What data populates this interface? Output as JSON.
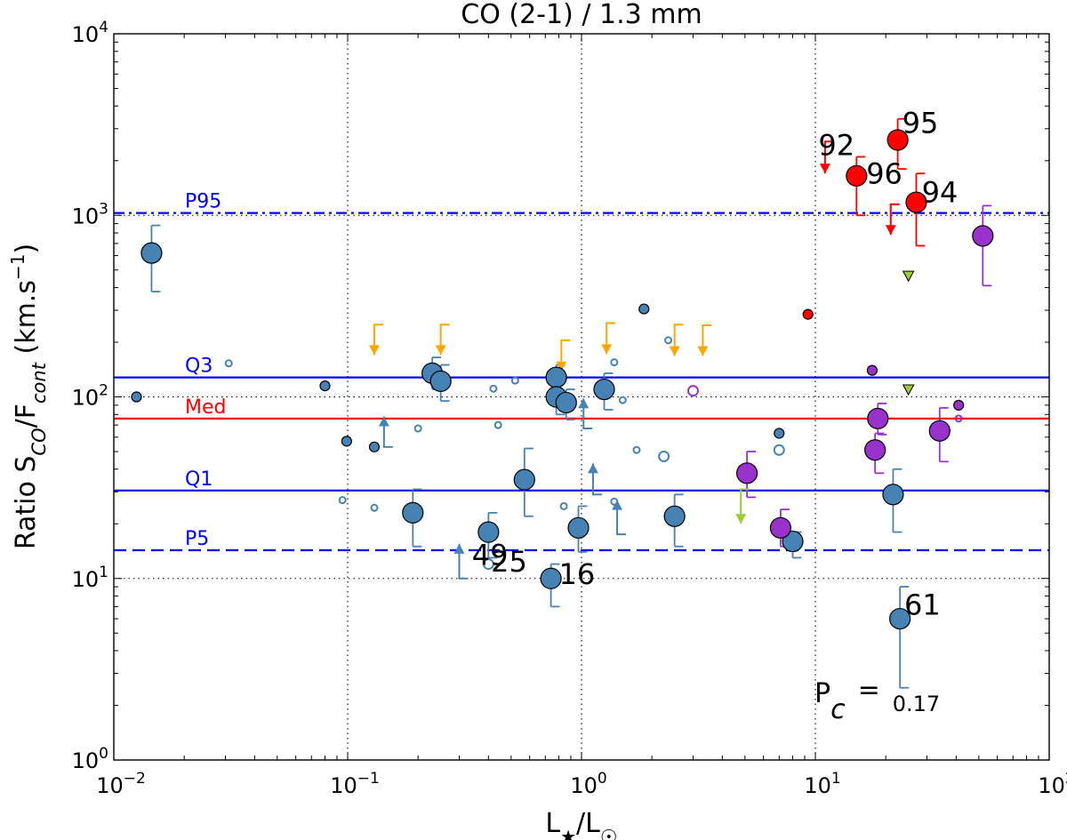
{
  "chart_data": {
    "type": "scatter",
    "title": "CO (2-1) / 1.3 mm",
    "xlabel": {
      "base": "L",
      "sub1": "★",
      "mid": "/L",
      "sub2": "☉"
    },
    "ylabel": {
      "base": "Ratio S",
      "sub1": "CO",
      "mid": "/F",
      "sub2": "cont",
      "unit": " (km.s",
      "unit_sup": "−1",
      "unit_end": ")"
    },
    "xscale": "log",
    "yscale": "log",
    "xlim": [
      0.01,
      100
    ],
    "ylim": [
      1,
      10000
    ],
    "x_ticks": [
      {
        "value": 0.01,
        "base": "10",
        "exp": "−2"
      },
      {
        "value": 0.1,
        "base": "10",
        "exp": "−1"
      },
      {
        "value": 1,
        "base": "10",
        "exp": "0"
      },
      {
        "value": 10,
        "base": "10",
        "exp": "1"
      },
      {
        "value": 100,
        "base": "10",
        "exp": "2"
      }
    ],
    "y_ticks": [
      {
        "value": 1,
        "base": "10",
        "exp": "0"
      },
      {
        "value": 10,
        "base": "10",
        "exp": "1"
      },
      {
        "value": 100,
        "base": "10",
        "exp": "2"
      },
      {
        "value": 1000,
        "base": "10",
        "exp": "3"
      },
      {
        "value": 10000,
        "base": "10",
        "exp": "4"
      }
    ],
    "grid": "dotted",
    "colors": {
      "blue": "#4682b4",
      "red": "#ff0000",
      "purple": "#9932cc",
      "orange": "#ffa500",
      "green": "#9acd32",
      "ref_blue": "#0000ff",
      "ref_red": "#ff0000"
    },
    "reference_lines": [
      {
        "name": "P95",
        "label": "P95",
        "value": 1030,
        "style": "dashdot",
        "color": "#0000ff"
      },
      {
        "name": "Q3",
        "label": "Q3",
        "value": 128,
        "style": "solid",
        "color": "#0000ff"
      },
      {
        "name": "Med",
        "label": "Med",
        "value": 76,
        "style": "solid",
        "color": "#ff0000"
      },
      {
        "name": "Q1",
        "label": "Q1",
        "value": 30.5,
        "style": "solid",
        "color": "#0000ff"
      },
      {
        "name": "P5",
        "label": "P5",
        "value": 14.3,
        "style": "dashed",
        "color": "#0000ff"
      }
    ],
    "points": [
      {
        "x": 0.0145,
        "y": 620,
        "size": "large",
        "color": "blue",
        "err_lo": 380,
        "err_hi": 880
      },
      {
        "x": 0.0125,
        "y": 100,
        "size": "small",
        "color": "blue"
      },
      {
        "x": 0.08,
        "y": 115,
        "size": "small",
        "color": "blue"
      },
      {
        "x": 0.099,
        "y": 57,
        "size": "small",
        "color": "blue"
      },
      {
        "x": 0.13,
        "y": 53,
        "size": "small",
        "color": "blue"
      },
      {
        "x": 0.19,
        "y": 23,
        "size": "large",
        "color": "blue",
        "err_lo": 15,
        "err_hi": 31
      },
      {
        "x": 0.23,
        "y": 135,
        "size": "large",
        "color": "blue",
        "err_lo": 110,
        "err_hi": 165
      },
      {
        "x": 0.25,
        "y": 122,
        "size": "large",
        "color": "blue",
        "err_lo": 95,
        "err_hi": 150
      },
      {
        "x": 0.4,
        "y": 18,
        "size": "large",
        "color": "blue",
        "err_lo": 13,
        "err_hi": 23
      },
      {
        "x": 0.57,
        "y": 35,
        "size": "large",
        "color": "blue",
        "err_lo": 22,
        "err_hi": 52
      },
      {
        "x": 0.74,
        "y": 10,
        "size": "large",
        "color": "blue",
        "err_lo": 7,
        "err_hi": 12
      },
      {
        "x": 0.78,
        "y": 128,
        "size": "large",
        "color": "blue",
        "err_lo": 105,
        "err_hi": 150
      },
      {
        "x": 0.78,
        "y": 100,
        "size": "large",
        "color": "blue",
        "err_lo": 80,
        "err_hi": 122
      },
      {
        "x": 0.86,
        "y": 93,
        "size": "large",
        "color": "blue",
        "err_lo": 75,
        "err_hi": 110
      },
      {
        "x": 0.97,
        "y": 19,
        "size": "large",
        "color": "blue",
        "err_lo": 14,
        "err_hi": 25
      },
      {
        "x": 1.25,
        "y": 110,
        "size": "large",
        "color": "blue",
        "err_lo": 85,
        "err_hi": 135
      },
      {
        "x": 1.85,
        "y": 305,
        "size": "small",
        "color": "blue"
      },
      {
        "x": 2.5,
        "y": 22,
        "size": "large",
        "color": "blue",
        "err_lo": 15,
        "err_hi": 29
      },
      {
        "x": 7.0,
        "y": 63,
        "size": "small",
        "color": "blue"
      },
      {
        "x": 8.0,
        "y": 16,
        "size": "large",
        "color": "blue",
        "err_lo": 13,
        "err_hi": 18
      },
      {
        "x": 21.5,
        "y": 29,
        "size": "large",
        "color": "blue",
        "err_lo": 18,
        "err_hi": 40
      },
      {
        "x": 23.0,
        "y": 6,
        "size": "large",
        "color": "blue",
        "err_lo": 2.5,
        "err_hi": 9
      },
      {
        "x": 0.031,
        "y": 153,
        "size": "tiny",
        "color": "blue",
        "open": true
      },
      {
        "x": 0.095,
        "y": 27,
        "size": "tiny",
        "color": "blue",
        "open": true
      },
      {
        "x": 0.13,
        "y": 24.5,
        "size": "tiny",
        "color": "blue",
        "open": true
      },
      {
        "x": 0.2,
        "y": 67,
        "size": "tiny",
        "color": "blue",
        "open": true
      },
      {
        "x": 0.4,
        "y": 12,
        "size": "small",
        "color": "blue",
        "open": true
      },
      {
        "x": 0.42,
        "y": 111,
        "size": "tiny",
        "color": "blue",
        "open": true
      },
      {
        "x": 0.44,
        "y": 70,
        "size": "tiny",
        "color": "blue",
        "open": true
      },
      {
        "x": 0.52,
        "y": 123,
        "size": "tiny",
        "color": "blue",
        "open": true
      },
      {
        "x": 0.84,
        "y": 25,
        "size": "tiny",
        "color": "blue",
        "open": true
      },
      {
        "x": 1.38,
        "y": 155,
        "size": "tiny",
        "color": "blue",
        "open": true
      },
      {
        "x": 1.38,
        "y": 26.5,
        "size": "tiny",
        "color": "blue",
        "open": true
      },
      {
        "x": 1.5,
        "y": 96,
        "size": "tiny",
        "color": "blue",
        "open": true
      },
      {
        "x": 1.72,
        "y": 51,
        "size": "tiny",
        "color": "blue",
        "open": true
      },
      {
        "x": 2.25,
        "y": 47,
        "size": "small",
        "color": "blue",
        "open": true
      },
      {
        "x": 2.35,
        "y": 205,
        "size": "tiny",
        "color": "blue",
        "open": true
      },
      {
        "x": 7.0,
        "y": 51,
        "size": "small",
        "color": "blue",
        "open": true
      },
      {
        "x": 15.0,
        "y": 1650,
        "size": "large",
        "color": "red",
        "err_lo": 1000,
        "err_hi": 2100
      },
      {
        "x": 22.5,
        "y": 2600,
        "size": "large",
        "color": "red",
        "err_lo": 1800,
        "err_hi": 3400
      },
      {
        "x": 27.0,
        "y": 1180,
        "size": "large",
        "color": "red",
        "err_lo": 680,
        "err_hi": 1700
      },
      {
        "x": 9.3,
        "y": 285,
        "size": "small",
        "color": "red"
      },
      {
        "x": 5.1,
        "y": 38,
        "size": "large",
        "color": "purple",
        "err_lo": 28,
        "err_hi": 50
      },
      {
        "x": 7.1,
        "y": 19,
        "size": "large",
        "color": "purple",
        "err_lo": 15,
        "err_hi": 24
      },
      {
        "x": 18.0,
        "y": 51,
        "size": "large",
        "color": "purple",
        "err_lo": 38,
        "err_hi": 63
      },
      {
        "x": 18.5,
        "y": 76,
        "size": "large",
        "color": "purple",
        "err_lo": 62,
        "err_hi": 92
      },
      {
        "x": 34.0,
        "y": 65,
        "size": "large",
        "color": "purple",
        "err_lo": 44,
        "err_hi": 87
      },
      {
        "x": 52.0,
        "y": 770,
        "size": "large",
        "color": "purple",
        "err_lo": 410,
        "err_hi": 1130
      },
      {
        "x": 17.5,
        "y": 140,
        "size": "small",
        "color": "purple"
      },
      {
        "x": 41.0,
        "y": 90,
        "size": "small",
        "color": "purple"
      },
      {
        "x": 3.0,
        "y": 108,
        "size": "small",
        "color": "purple",
        "open": true
      },
      {
        "x": 41.0,
        "y": 76,
        "size": "tiny",
        "color": "purple",
        "open": true
      }
    ],
    "upper_limits": [
      {
        "x": 0.13,
        "y": 250,
        "to": 170,
        "color": "orange"
      },
      {
        "x": 0.25,
        "y": 250,
        "to": 170,
        "color": "orange"
      },
      {
        "x": 0.82,
        "y": 205,
        "to": 138,
        "color": "orange"
      },
      {
        "x": 1.28,
        "y": 255,
        "to": 172,
        "color": "orange"
      },
      {
        "x": 2.5,
        "y": 250,
        "to": 168,
        "color": "orange"
      },
      {
        "x": 3.3,
        "y": 248,
        "to": 168,
        "color": "orange"
      },
      {
        "x": 4.8,
        "y": 31,
        "to": 20,
        "color": "green"
      },
      {
        "x": 11.0,
        "y": 2550,
        "to": 1700,
        "color": "red"
      },
      {
        "x": 21.0,
        "y": 1150,
        "to": 780,
        "color": "red"
      }
    ],
    "lower_limits": [
      {
        "x": 0.143,
        "y": 53,
        "to": 78,
        "color": "blue"
      },
      {
        "x": 0.3,
        "y": 10,
        "to": 15.5,
        "color": "blue"
      },
      {
        "x": 1.02,
        "y": 67,
        "to": 98,
        "color": "blue"
      },
      {
        "x": 1.12,
        "y": 29,
        "to": 43,
        "color": "blue"
      },
      {
        "x": 1.42,
        "y": 17.5,
        "to": 27,
        "color": "blue"
      }
    ],
    "triangles": [
      {
        "x": 25.0,
        "y": 465,
        "color": "green"
      },
      {
        "x": 25.0,
        "y": 110,
        "color": "green"
      }
    ],
    "annotations": [
      {
        "text": "92",
        "x": 10.3,
        "y": 2150
      },
      {
        "text": "96",
        "x": 16.5,
        "y": 1500
      },
      {
        "text": "95",
        "x": 23.5,
        "y": 2850
      },
      {
        "text": "94",
        "x": 28.5,
        "y": 1180
      },
      {
        "text": "49",
        "x": 0.34,
        "y": 11.9
      },
      {
        "text": "25",
        "x": 0.41,
        "y": 10.9
      },
      {
        "text": "16",
        "x": 0.8,
        "y": 9.3
      },
      {
        "text": "61",
        "x": 24.0,
        "y": 6.3
      }
    ],
    "pc": {
      "label": "P",
      "sub": "c",
      "eq": "=",
      "value": "0.17"
    }
  }
}
